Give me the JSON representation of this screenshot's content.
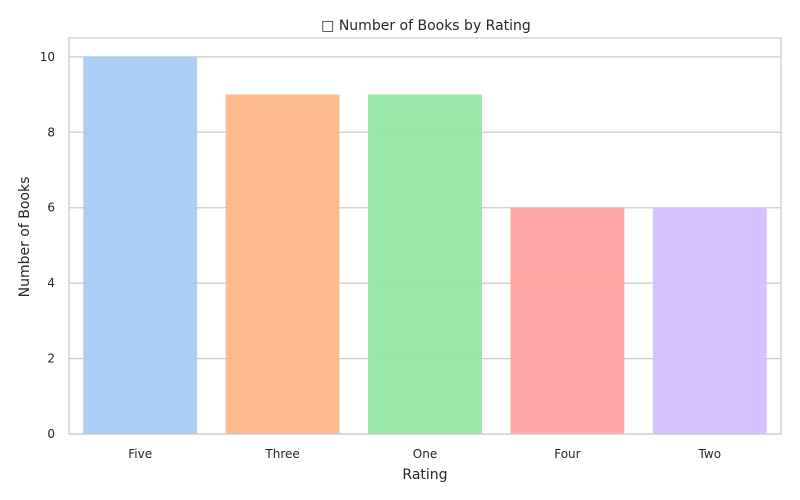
{
  "chart_data": {
    "type": "bar",
    "title": "□ Number of Books by Rating",
    "xlabel": "Rating",
    "ylabel": "Number of Books",
    "categories": [
      "Five",
      "Three",
      "One",
      "Four",
      "Two"
    ],
    "values": [
      10,
      9,
      9,
      6,
      6
    ],
    "colors": [
      "#a1c9f4",
      "#ffb482",
      "#8de5a1",
      "#ff9f9b",
      "#d0bbff"
    ],
    "yticks": [
      "0",
      "2",
      "4",
      "6",
      "8",
      "10"
    ],
    "ylim": [
      0,
      10.5
    ],
    "grid": "horizontal",
    "bar_opacity": 0.9
  }
}
